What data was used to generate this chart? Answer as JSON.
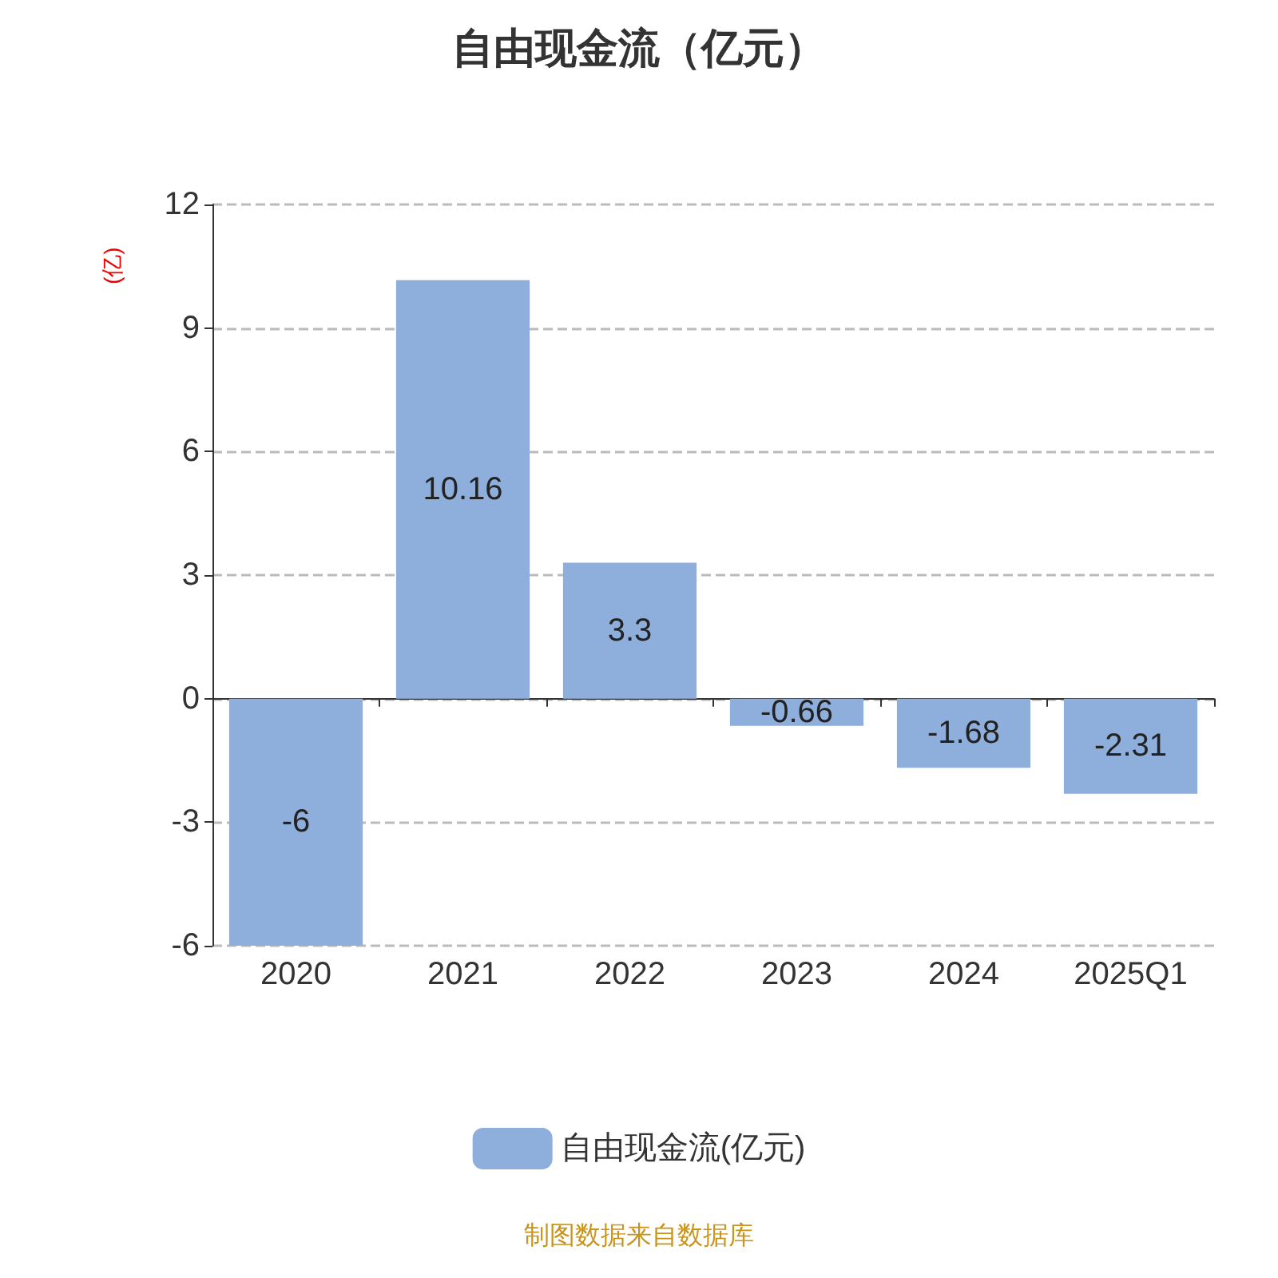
{
  "chart_data": {
    "type": "bar",
    "title": "自由现金流（亿元）",
    "ylabel": "(亿)",
    "categories": [
      "2020",
      "2021",
      "2022",
      "2023",
      "2024",
      "2025Q1"
    ],
    "series": [
      {
        "name": "自由现金流(亿元)",
        "color": "#8eaedb",
        "values": [
          -6,
          10.16,
          3.3,
          -0.66,
          -1.68,
          -2.31
        ]
      }
    ],
    "ylim": [
      -6,
      12
    ],
    "yticks": [
      -6,
      -3,
      0,
      3,
      6,
      9,
      12
    ],
    "grid": "y",
    "legend": "bottom",
    "data_labels": true,
    "annotations": [
      "制图数据来自数据库"
    ]
  }
}
